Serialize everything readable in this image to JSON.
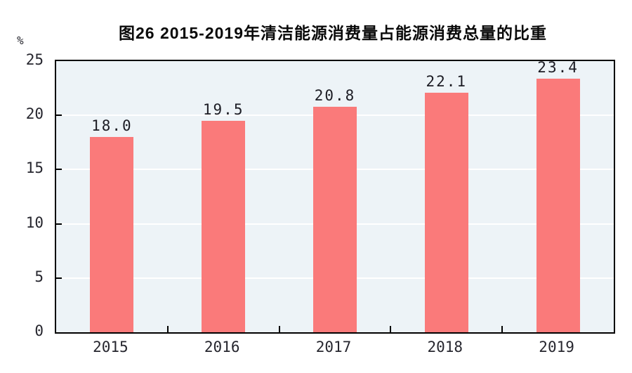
{
  "chart_data": {
    "type": "bar",
    "title": "图26  2015-2019年清洁能源消费量占能源消费总量的比重",
    "unit_label": "%",
    "categories": [
      "2015",
      "2016",
      "2017",
      "2018",
      "2019"
    ],
    "values": [
      18.0,
      19.5,
      20.8,
      22.1,
      23.4
    ],
    "value_labels": [
      "18.0",
      "19.5",
      "20.8",
      "22.1",
      "23.4"
    ],
    "xlabel": "",
    "ylabel": "%",
    "ylim": [
      0,
      25
    ],
    "yticks": [
      0,
      5,
      10,
      15,
      20,
      25
    ],
    "grid": "horizontal",
    "legend": "none",
    "colors": {
      "bar_fill": "#fa7a7a",
      "plot_background": "#edf3f7",
      "gridline": "#ffffff",
      "frame": "#000000",
      "text": "#1c1c24",
      "title_text": "#0a0a0a"
    }
  }
}
